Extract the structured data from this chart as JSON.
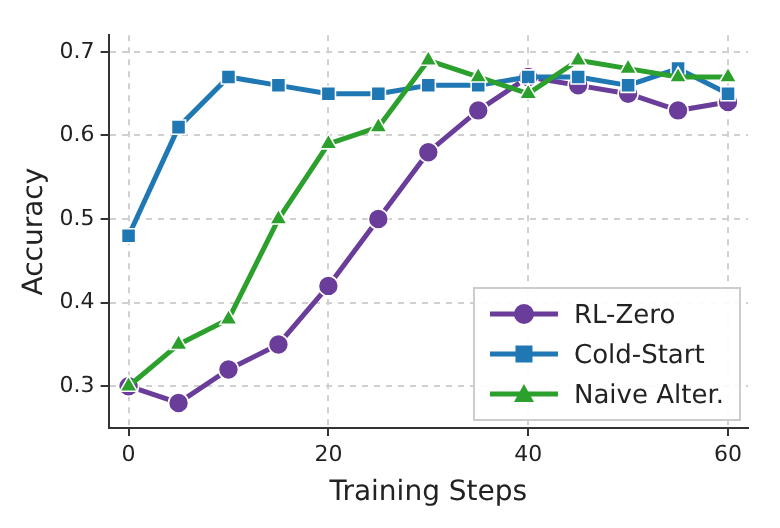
{
  "chart_data": {
    "type": "line",
    "xlabel": "Training Steps",
    "ylabel": "Accuracy",
    "x": [
      0,
      5,
      10,
      15,
      20,
      25,
      30,
      35,
      40,
      45,
      50,
      55,
      60
    ],
    "series": [
      {
        "name": "RL-Zero",
        "color": "#6a3d9a",
        "marker": "circle",
        "values": [
          0.3,
          0.28,
          0.32,
          0.35,
          0.42,
          0.5,
          0.58,
          0.63,
          0.67,
          0.66,
          0.65,
          0.63,
          0.64
        ]
      },
      {
        "name": "Cold-Start",
        "color": "#1f77b4",
        "marker": "square",
        "values": [
          0.48,
          0.61,
          0.67,
          0.66,
          0.65,
          0.65,
          0.66,
          0.66,
          0.67,
          0.67,
          0.66,
          0.68,
          0.65
        ]
      },
      {
        "name": "Naive Alter.",
        "color": "#2ca02c",
        "marker": "triangle",
        "values": [
          0.3,
          0.35,
          0.38,
          0.5,
          0.59,
          0.61,
          0.69,
          0.67,
          0.65,
          0.69,
          0.68,
          0.67,
          0.67
        ]
      }
    ],
    "xlim": [
      -2,
      62
    ],
    "ylim": [
      0.25,
      0.72
    ],
    "xticks": [
      0,
      20,
      40,
      60
    ],
    "yticks": [
      0.3,
      0.4,
      0.5,
      0.6,
      0.7
    ],
    "grid": true,
    "legend": "bottom right",
    "line_style": "solid"
  }
}
